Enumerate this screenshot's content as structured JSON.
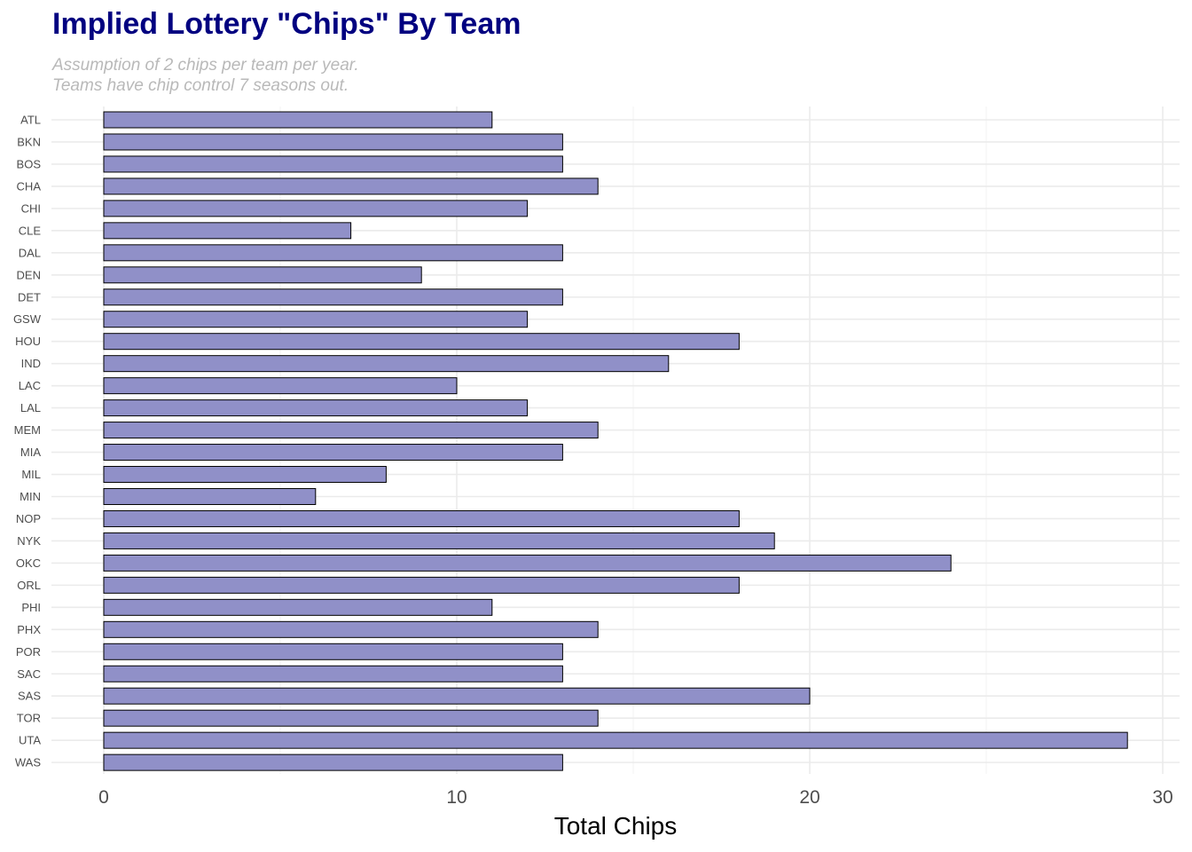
{
  "chart_data": {
    "type": "bar",
    "orientation": "horizontal",
    "title": "Implied Lottery \"Chips\" By Team",
    "subtitle": [
      "Assumption of 2 chips per team per year.",
      "Teams have chip control 7 seasons out."
    ],
    "xlabel": "Total Chips",
    "ylabel": "",
    "categories": [
      "ATL",
      "BKN",
      "BOS",
      "CHA",
      "CHI",
      "CLE",
      "DAL",
      "DEN",
      "DET",
      "GSW",
      "HOU",
      "IND",
      "LAC",
      "LAL",
      "MEM",
      "MIA",
      "MIL",
      "MIN",
      "NOP",
      "NYK",
      "OKC",
      "ORL",
      "PHI",
      "PHX",
      "POR",
      "SAC",
      "SAS",
      "TOR",
      "UTA",
      "WAS"
    ],
    "values": [
      11,
      13,
      13,
      14,
      12,
      7,
      13,
      9,
      13,
      12,
      18,
      16,
      10,
      12,
      14,
      13,
      8,
      6,
      18,
      19,
      24,
      18,
      11,
      14,
      13,
      13,
      20,
      14,
      29,
      13
    ],
    "xlim": [
      0,
      30
    ],
    "xticks": [
      0,
      10,
      20,
      30
    ],
    "grid": true,
    "legend": "none",
    "bar_color": "#9090c8",
    "bar_border": "#000000",
    "title_color": "#000080",
    "subtitle_color": "#b9b9b9"
  }
}
